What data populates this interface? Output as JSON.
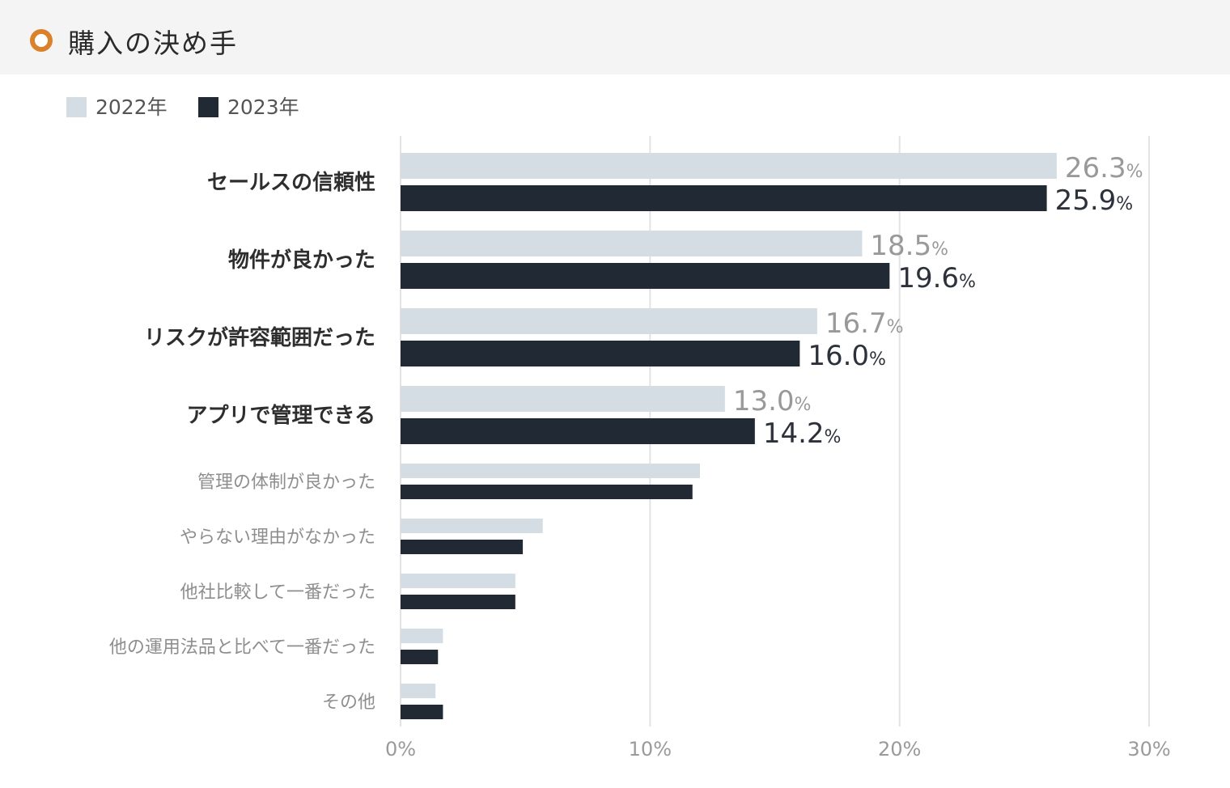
{
  "header": {
    "title": "購入の決め手",
    "icon": "circle-bullet-icon",
    "icon_color": "#d9822b"
  },
  "colors": {
    "series_2022": "#d4dde4",
    "series_2023": "#212a34",
    "gridline": "#e3e3e3"
  },
  "chart_data": {
    "type": "bar",
    "orientation": "horizontal",
    "title": "購入の決め手",
    "xlabel": "",
    "ylabel": "",
    "xlim": [
      0,
      30
    ],
    "x_ticks": [
      "0%",
      "10%",
      "20%",
      "30%"
    ],
    "grid": true,
    "legend": "top-left",
    "categories": [
      "セールスの信頼性",
      "物件が良かった",
      "リスクが許容範囲だった",
      "アプリで管理できる",
      "管理の体制が良かった",
      "やらない理由がなかった",
      "他社比較して一番だった",
      "他の運用法品と比べて一番だった",
      "その他"
    ],
    "emphasized_count": 4,
    "value_unit": "%",
    "series": [
      {
        "name": "2022年",
        "values": [
          26.3,
          18.5,
          16.7,
          13.0,
          12.0,
          5.7,
          4.6,
          1.7,
          1.4
        ],
        "labels": [
          "26.3",
          "18.5",
          "16.7",
          "13.0",
          null,
          null,
          null,
          null,
          null
        ]
      },
      {
        "name": "2023年",
        "values": [
          25.9,
          19.6,
          16.0,
          14.2,
          11.7,
          4.9,
          4.6,
          1.5,
          1.7
        ],
        "labels": [
          "25.9",
          "19.6",
          "16.0",
          "14.2",
          null,
          null,
          null,
          null,
          null
        ]
      }
    ]
  }
}
